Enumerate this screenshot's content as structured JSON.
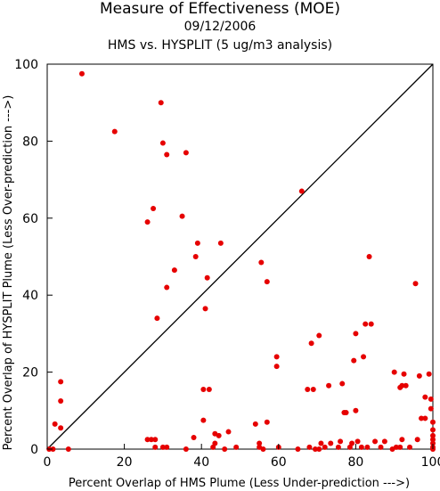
{
  "chart_data": {
    "type": "scatter",
    "title": "Measure of Effectiveness (MOE)",
    "subtitle_date": "09/12/2006",
    "subtitle_analysis": "HMS vs. HYSPLIT  (5 ug/m3 analysis)",
    "xlabel": "Percent Overlap of HMS Plume (Less Under-prediction --->)",
    "ylabel": "Percent Overlap of HYSPLIT Plume (Less Over-prediction --->)",
    "xlim": [
      0,
      100
    ],
    "ylim": [
      0,
      100
    ],
    "xticks": [
      0,
      20,
      40,
      60,
      80,
      100
    ],
    "yticks": [
      0,
      20,
      40,
      60,
      80,
      100
    ],
    "reference_line": [
      [
        0,
        0
      ],
      [
        100,
        100
      ]
    ],
    "point_color": "#e60000",
    "line_color": "#000000",
    "points": [
      [
        0.5,
        0
      ],
      [
        1.5,
        0
      ],
      [
        2,
        6.5
      ],
      [
        3.5,
        5.5
      ],
      [
        3.5,
        12.5
      ],
      [
        3.5,
        17.5
      ],
      [
        5.5,
        0
      ],
      [
        9,
        97.5
      ],
      [
        17.5,
        82.5
      ],
      [
        26,
        59
      ],
      [
        26,
        2.5
      ],
      [
        27,
        2.5
      ],
      [
        27.5,
        62.5
      ],
      [
        28,
        2.5
      ],
      [
        28.5,
        34
      ],
      [
        28,
        0.5
      ],
      [
        29.5,
        90
      ],
      [
        30,
        79.5
      ],
      [
        30,
        0.5
      ],
      [
        31,
        76.5
      ],
      [
        31,
        42
      ],
      [
        31,
        0.5
      ],
      [
        33,
        46.5
      ],
      [
        35,
        60.5
      ],
      [
        36,
        77
      ],
      [
        36,
        0
      ],
      [
        38,
        3
      ],
      [
        38.5,
        50
      ],
      [
        39,
        53.5
      ],
      [
        40.5,
        15.5
      ],
      [
        40.5,
        7.5
      ],
      [
        41,
        36.5
      ],
      [
        41.5,
        44.5
      ],
      [
        42,
        15.5
      ],
      [
        43,
        0.5
      ],
      [
        43.5,
        1.5
      ],
      [
        43.5,
        4
      ],
      [
        44.5,
        3.5
      ],
      [
        45,
        53.5
      ],
      [
        46,
        0
      ],
      [
        47,
        4.5
      ],
      [
        49,
        0.5
      ],
      [
        54,
        6.5
      ],
      [
        55,
        1.5
      ],
      [
        55,
        0.5
      ],
      [
        55.5,
        48.5
      ],
      [
        56,
        0
      ],
      [
        57,
        7
      ],
      [
        57,
        43.5
      ],
      [
        59.5,
        24
      ],
      [
        59.5,
        21.5
      ],
      [
        60,
        0.5
      ],
      [
        65,
        0
      ],
      [
        66,
        67
      ],
      [
        67.5,
        15.5
      ],
      [
        68,
        0.5
      ],
      [
        68.5,
        27.5
      ],
      [
        69,
        15.5
      ],
      [
        69.5,
        0
      ],
      [
        70.5,
        29.5
      ],
      [
        70.5,
        0
      ],
      [
        71,
        1.5
      ],
      [
        72,
        0.5
      ],
      [
        73,
        16.5
      ],
      [
        73.5,
        1.5
      ],
      [
        75.5,
        0.5
      ],
      [
        76,
        2
      ],
      [
        76.5,
        17
      ],
      [
        77,
        9.5
      ],
      [
        77.5,
        9.5
      ],
      [
        78.5,
        0.5
      ],
      [
        79,
        1.5
      ],
      [
        79.5,
        23
      ],
      [
        80,
        30
      ],
      [
        80,
        10
      ],
      [
        80.5,
        2
      ],
      [
        81.5,
        0.5
      ],
      [
        82,
        24
      ],
      [
        82.5,
        32.5
      ],
      [
        83,
        0.5
      ],
      [
        83.5,
        50
      ],
      [
        84,
        32.5
      ],
      [
        85,
        2
      ],
      [
        86.5,
        0.5
      ],
      [
        87.5,
        2
      ],
      [
        89.5,
        0
      ],
      [
        90,
        20
      ],
      [
        90.5,
        0.5
      ],
      [
        91.5,
        0.5
      ],
      [
        91.5,
        16
      ],
      [
        92,
        16.5
      ],
      [
        92,
        2.5
      ],
      [
        92.5,
        19.5
      ],
      [
        93,
        16.5
      ],
      [
        94,
        0.5
      ],
      [
        95.5,
        43
      ],
      [
        96,
        2.5
      ],
      [
        96.5,
        19
      ],
      [
        97,
        8
      ],
      [
        98,
        13.5
      ],
      [
        98,
        8
      ],
      [
        99,
        19.5
      ],
      [
        99.5,
        13
      ],
      [
        99.5,
        10.5
      ],
      [
        100,
        7
      ],
      [
        100,
        5
      ],
      [
        100,
        3.5
      ],
      [
        100,
        2.5
      ],
      [
        100,
        1.5
      ],
      [
        100,
        0.5
      ],
      [
        100,
        0
      ]
    ]
  }
}
